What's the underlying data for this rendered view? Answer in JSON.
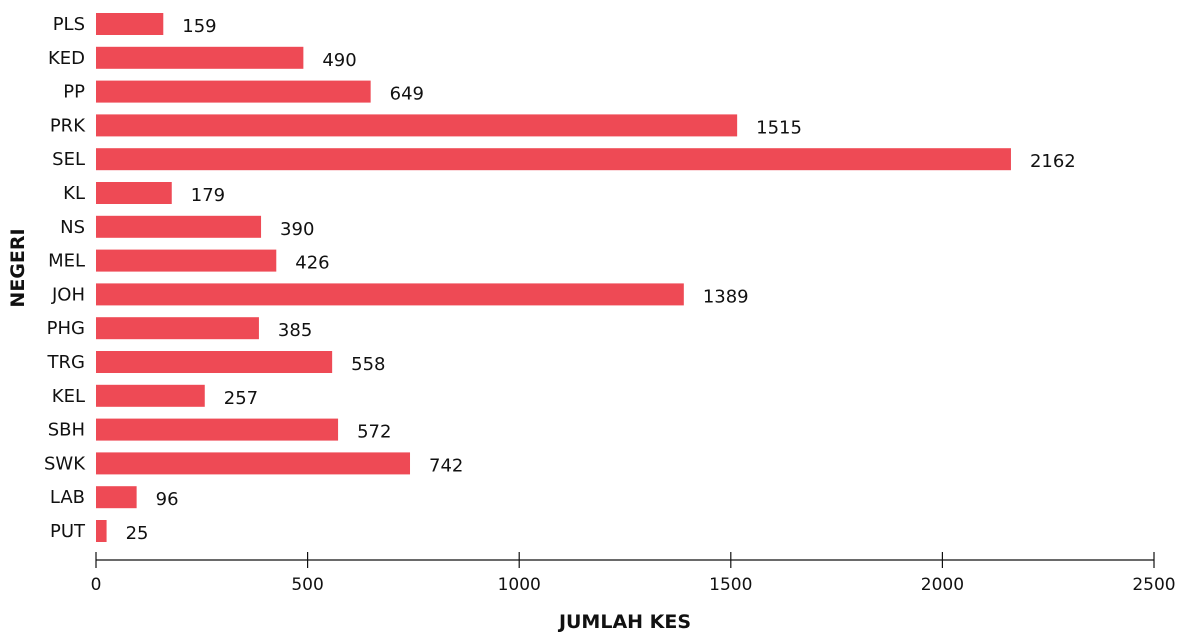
{
  "chart_data": {
    "type": "bar",
    "orientation": "horizontal",
    "categories": [
      "PLS",
      "KED",
      "PP",
      "PRK",
      "SEL",
      "KL",
      "NS",
      "MEL",
      "JOH",
      "PHG",
      "TRG",
      "KEL",
      "SBH",
      "SWK",
      "LAB",
      "PUT"
    ],
    "values": [
      159,
      490,
      649,
      1515,
      2162,
      179,
      390,
      426,
      1389,
      385,
      558,
      257,
      572,
      742,
      96,
      25
    ],
    "xlabel": "JUMLAH KES",
    "ylabel": "NEGERI",
    "xlim": [
      0,
      2500
    ],
    "xticks": [
      0,
      500,
      1000,
      1500,
      2000,
      2500
    ],
    "grid": false,
    "bar_color": "#ee4a55"
  }
}
